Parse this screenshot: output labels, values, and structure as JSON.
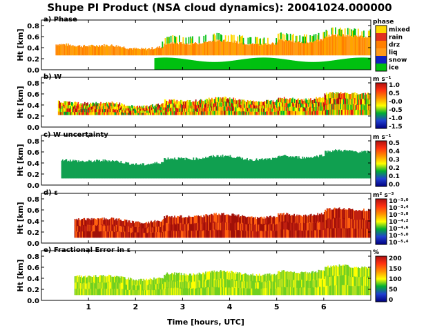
{
  "title": "Shupe PI Product (NSA cloud dynamics): 20041024.000000",
  "xlabel": "Time [hours, UTC]",
  "ylabel": "Ht [km]",
  "chart_data": {
    "type": "heatmap",
    "title": "Shupe PI Product (NSA cloud dynamics): 20041024.000000",
    "xlabel": "Time [hours, UTC]",
    "xlim": [
      0,
      7
    ],
    "xticks": [
      "1",
      "2",
      "3",
      "4",
      "5",
      "6"
    ],
    "x_tick_values": [
      1,
      2,
      3,
      4,
      5,
      6
    ],
    "panels": [
      {
        "key": "phase",
        "title": "a) Phase",
        "ylabel": "Ht [km]",
        "ylim": [
          0,
          0.9
        ],
        "yticks": [
          "0.0",
          "0.2",
          "0.4",
          "0.6",
          "0.8"
        ],
        "colorbar_title": "phase",
        "colorbar_labels": [
          "mixed",
          "rain",
          "drz",
          "liq",
          "snow",
          "ice"
        ],
        "colorbar_colors": [
          "#ffd700",
          "#e0301e",
          "#ff7f00",
          "#ff9a1a",
          "#1020c0",
          "#00c010"
        ],
        "cloud_base_km": 0.08,
        "cloud_top_km_range": [
          0.32,
          0.66
        ]
      },
      {
        "key": "w",
        "title": "b) W",
        "ylabel": "Ht [km]",
        "ylim": [
          0,
          0.9
        ],
        "yticks": [
          "0.0",
          "0.2",
          "0.4",
          "0.6",
          "0.8"
        ],
        "colorbar_title": "m s⁻¹",
        "colorbar_labels": [
          "1.0",
          "0.5",
          "-0.0",
          "-0.5",
          "-1.0",
          "-1.5"
        ],
        "colorbar_colors": [
          "#b01010",
          "#ff3010",
          "#ff9000",
          "#ffff00",
          "#00b030",
          "#2040d0",
          "#000080"
        ]
      },
      {
        "key": "w_uncertainty",
        "title": "c) W uncertainty",
        "ylabel": "Ht [km]",
        "ylim": [
          0,
          0.9
        ],
        "yticks": [
          "0.0",
          "0.2",
          "0.4",
          "0.6",
          "0.8"
        ],
        "colorbar_title": "m s⁻¹",
        "colorbar_labels": [
          "0.5",
          "0.4",
          "0.3",
          "0.2",
          "0.1",
          "0.0"
        ],
        "colorbar_colors": [
          "#b01010",
          "#ff3010",
          "#ff9000",
          "#ffff00",
          "#00b030",
          "#2040d0",
          "#000080"
        ]
      },
      {
        "key": "epsilon",
        "title": "d) ε",
        "ylabel": "Ht [km]",
        "ylim": [
          0,
          0.9
        ],
        "yticks": [
          "0.0",
          "0.2",
          "0.4",
          "0.6",
          "0.8"
        ],
        "colorbar_title": "m² s⁻³",
        "colorbar_labels": [
          "10⁻³·⁰",
          "10⁻³·⁴",
          "10⁻³·⁸",
          "10⁻⁴·²",
          "10⁻⁴·⁶",
          "10⁻⁵·⁰",
          "10⁻⁵·⁴"
        ],
        "colorbar_colors": [
          "#b01010",
          "#ff3010",
          "#ff9000",
          "#ffff00",
          "#00b030",
          "#2040d0",
          "#000080"
        ]
      },
      {
        "key": "epsilon_error",
        "title": "e) Fractional Error in ε",
        "ylabel": "Ht [km]",
        "ylim": [
          0,
          0.9
        ],
        "yticks": [
          "0.0",
          "0.2",
          "0.4",
          "0.6",
          "0.8"
        ],
        "colorbar_title": "%",
        "colorbar_labels": [
          "200",
          "150",
          "100",
          "50",
          "0"
        ],
        "colorbar_colors": [
          "#b01010",
          "#ff3010",
          "#ff9000",
          "#ffff00",
          "#00b030",
          "#2040d0",
          "#000080"
        ]
      }
    ]
  }
}
